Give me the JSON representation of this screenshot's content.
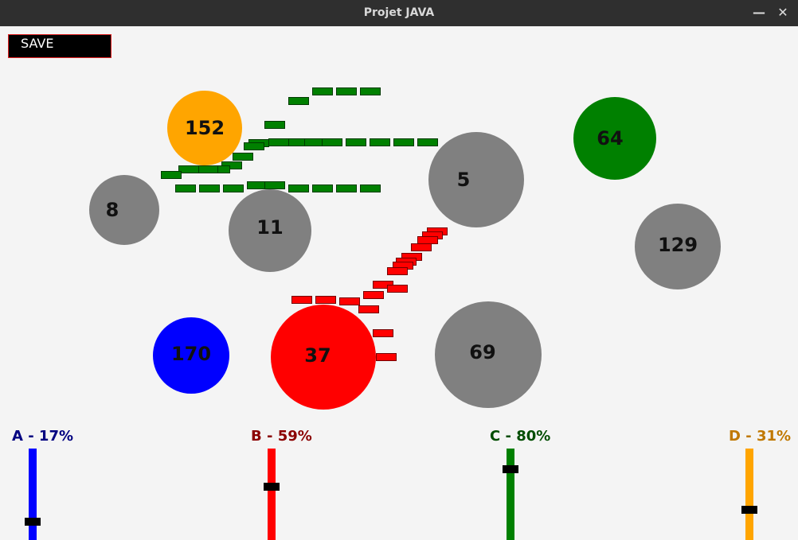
{
  "window": {
    "title": "Projet JAVA",
    "minimize_glyph": "—",
    "close_glyph": "✕"
  },
  "toolbar": {
    "save_label": "SAVE"
  },
  "nodes": [
    {
      "id": "node-152",
      "value": "152",
      "owner": "D",
      "color": "#ffa500"
    },
    {
      "id": "node-64",
      "value": "64",
      "owner": "C",
      "color": "#008000"
    },
    {
      "id": "node-8",
      "value": "8",
      "owner": "neutral",
      "color": "#808080"
    },
    {
      "id": "node-11",
      "value": "11",
      "owner": "neutral",
      "color": "#808080"
    },
    {
      "id": "node-5",
      "value": "5",
      "owner": "neutral",
      "color": "#808080"
    },
    {
      "id": "node-129",
      "value": "129",
      "owner": "neutral",
      "color": "#808080"
    },
    {
      "id": "node-170",
      "value": "170",
      "owner": "A",
      "color": "#0000ff"
    },
    {
      "id": "node-37",
      "value": "37",
      "owner": "B",
      "color": "#ff0000"
    },
    {
      "id": "node-69",
      "value": "69",
      "owner": "neutral",
      "color": "#808080"
    }
  ],
  "unit_colors": {
    "green": "#008000",
    "red": "#ff0000"
  },
  "players": [
    {
      "id": "A",
      "label": "A - 17%",
      "percent": 17,
      "color": "#0000ff",
      "text_color": "#000080"
    },
    {
      "id": "B",
      "label": "B - 59%",
      "percent": 59,
      "color": "#ff0000",
      "text_color": "#8b0000"
    },
    {
      "id": "C",
      "label": "C - 80%",
      "percent": 80,
      "color": "#008000",
      "text_color": "#004d00"
    },
    {
      "id": "D",
      "label": "D - 31%",
      "percent": 31,
      "color": "#ffa500",
      "text_color": "#c07800"
    }
  ]
}
